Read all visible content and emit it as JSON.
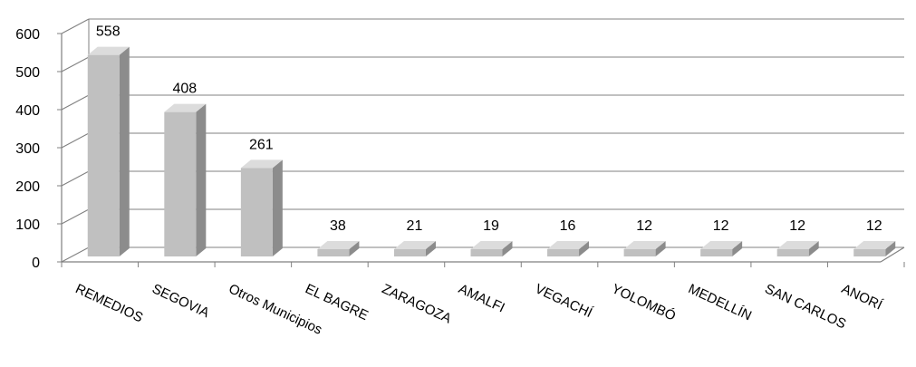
{
  "chart_data": {
    "type": "bar",
    "categories": [
      "REMEDIOS",
      "SEGOVIA",
      "Otros Municipios",
      "EL BAGRE",
      "ZARAGOZA",
      "AMALFI",
      "VEGACHÍ",
      "YOLOMBÓ",
      "MEDELLÍN",
      "SAN CARLOS",
      "ANORÍ"
    ],
    "values": [
      558,
      408,
      261,
      38,
      21,
      19,
      16,
      12,
      12,
      12,
      12
    ],
    "data_labels": [
      "558",
      "408",
      "261",
      "38",
      "21",
      "19",
      "16",
      "12",
      "12",
      "12",
      "12"
    ],
    "y_ticks": [
      "0",
      "100",
      "200",
      "300",
      "400",
      "500",
      "600"
    ],
    "ylim": [
      0,
      600
    ],
    "grid": true,
    "style": "3d-column",
    "colors": {
      "bar_front": "#c0c0c0",
      "bar_side": "#8c8c8c",
      "bar_top": "#dcdcdc",
      "axis": "#808080",
      "grid": "#808080"
    }
  }
}
